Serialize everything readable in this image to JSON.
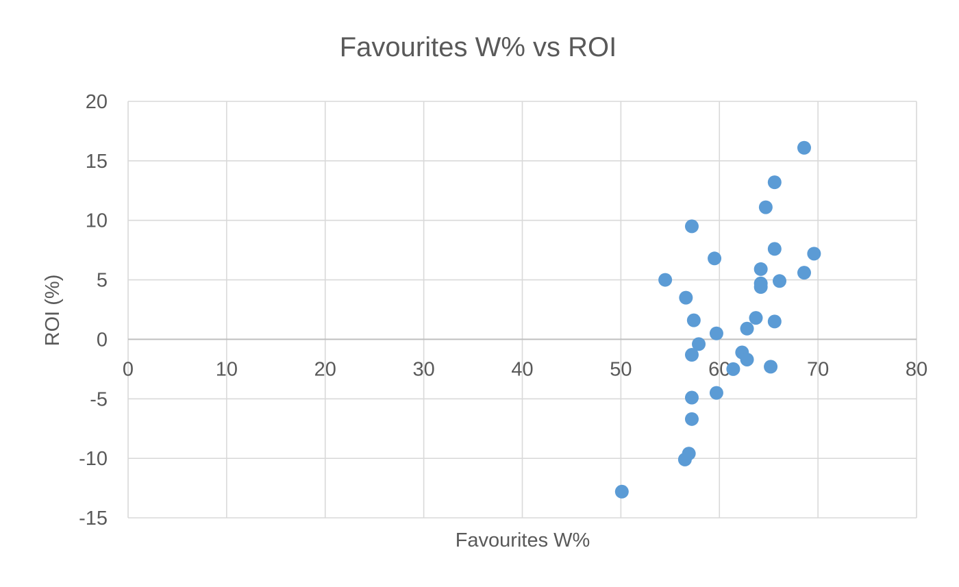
{
  "colors": {
    "point": "#5b9bd5",
    "grid": "#d9d9d9",
    "axis": "#bfbfbf",
    "text": "#595959"
  },
  "chart_data": {
    "type": "scatter",
    "title": "Favourites W% vs ROI",
    "xlabel": "Favourites W%",
    "ylabel": "ROI (%)",
    "xlim": [
      0,
      80
    ],
    "ylim": [
      -15,
      20
    ],
    "x_ticks": [
      "0",
      "10",
      "20",
      "30",
      "40",
      "50",
      "60",
      "70",
      "80"
    ],
    "y_ticks": [
      "20",
      "15",
      "10",
      "5",
      "0",
      "-5",
      "-10",
      "-15"
    ],
    "grid": true,
    "legend": "none",
    "points": [
      {
        "x": 68.6,
        "y": 16.1
      },
      {
        "x": 65.6,
        "y": 13.2
      },
      {
        "x": 64.7,
        "y": 11.1
      },
      {
        "x": 57.2,
        "y": 9.5
      },
      {
        "x": 65.6,
        "y": 7.6
      },
      {
        "x": 69.6,
        "y": 7.2
      },
      {
        "x": 59.5,
        "y": 6.8
      },
      {
        "x": 64.2,
        "y": 5.9
      },
      {
        "x": 68.6,
        "y": 5.6
      },
      {
        "x": 54.5,
        "y": 5.0
      },
      {
        "x": 66.1,
        "y": 4.9
      },
      {
        "x": 64.2,
        "y": 4.7
      },
      {
        "x": 64.2,
        "y": 4.4
      },
      {
        "x": 56.6,
        "y": 3.5
      },
      {
        "x": 63.7,
        "y": 1.8
      },
      {
        "x": 57.4,
        "y": 1.6
      },
      {
        "x": 65.6,
        "y": 1.5
      },
      {
        "x": 62.8,
        "y": 0.9
      },
      {
        "x": 59.7,
        "y": 0.5
      },
      {
        "x": 57.9,
        "y": -0.4
      },
      {
        "x": 62.3,
        "y": -1.1
      },
      {
        "x": 57.2,
        "y": -1.3
      },
      {
        "x": 62.8,
        "y": -1.7
      },
      {
        "x": 61.4,
        "y": -2.5
      },
      {
        "x": 65.2,
        "y": -2.3
      },
      {
        "x": 59.7,
        "y": -4.5
      },
      {
        "x": 57.2,
        "y": -4.9
      },
      {
        "x": 57.2,
        "y": -6.7
      },
      {
        "x": 56.9,
        "y": -9.6
      },
      {
        "x": 56.5,
        "y": -10.1
      },
      {
        "x": 50.1,
        "y": -12.8
      }
    ]
  }
}
